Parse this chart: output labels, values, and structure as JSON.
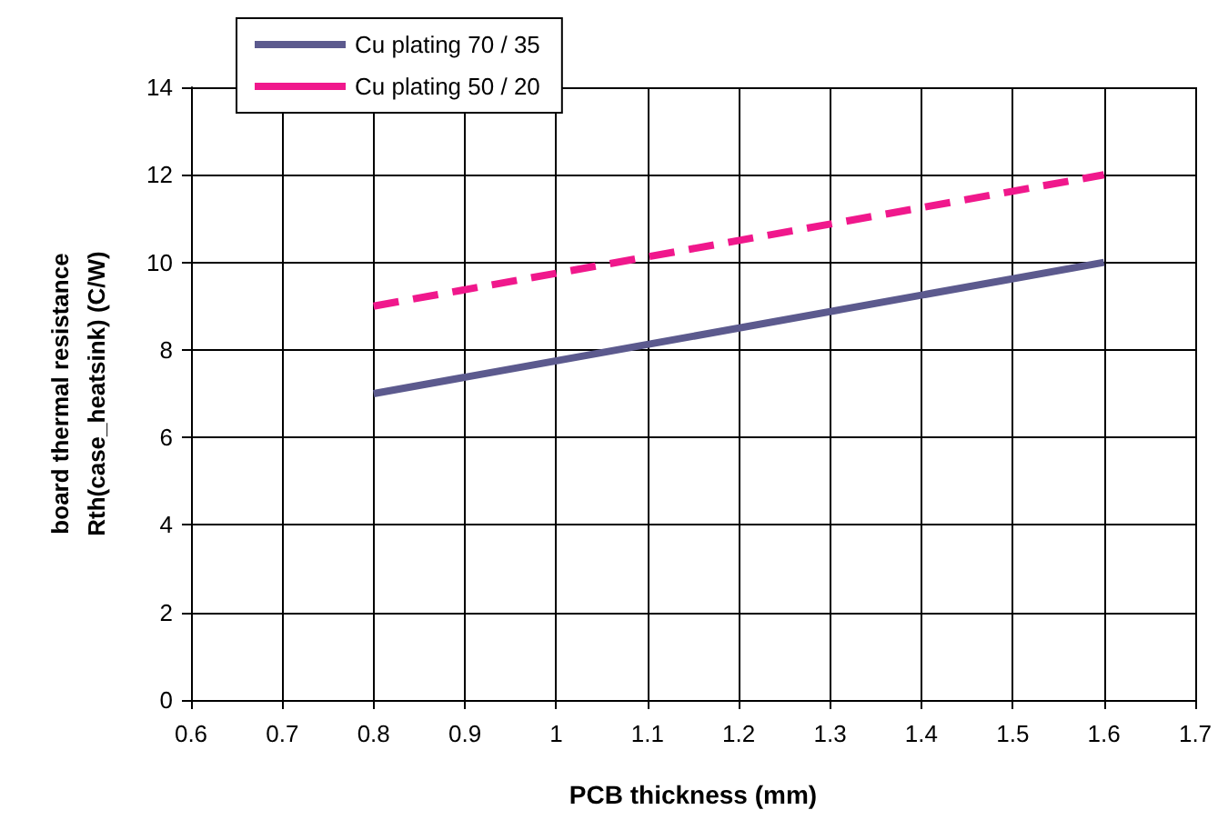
{
  "chart_data": {
    "type": "line",
    "xlabel": "PCB thickness (mm)",
    "ylabel": "board thermal resistance\nRth(case_heatsink) (C/W)",
    "x": [
      0.8,
      1.6
    ],
    "series": [
      {
        "name": "Cu plating 70 / 35",
        "color": "#5c5a8e",
        "values": [
          7,
          10
        ],
        "line_style": "solid"
      },
      {
        "name": "Cu plating 50 / 20",
        "color": "#f0188c",
        "values": [
          9,
          12
        ],
        "line_style": "dashed"
      }
    ],
    "xlim": [
      0.6,
      1.7
    ],
    "xticks": [
      0.6,
      0.7,
      0.8,
      0.9,
      1,
      1.1,
      1.2,
      1.3,
      1.4,
      1.5,
      1.6,
      1.7
    ],
    "ylim": [
      0,
      14
    ],
    "yticks": [
      0,
      2,
      4,
      6,
      8,
      10,
      12,
      14
    ],
    "grid": true,
    "legend": "top left",
    "marker": "none"
  }
}
